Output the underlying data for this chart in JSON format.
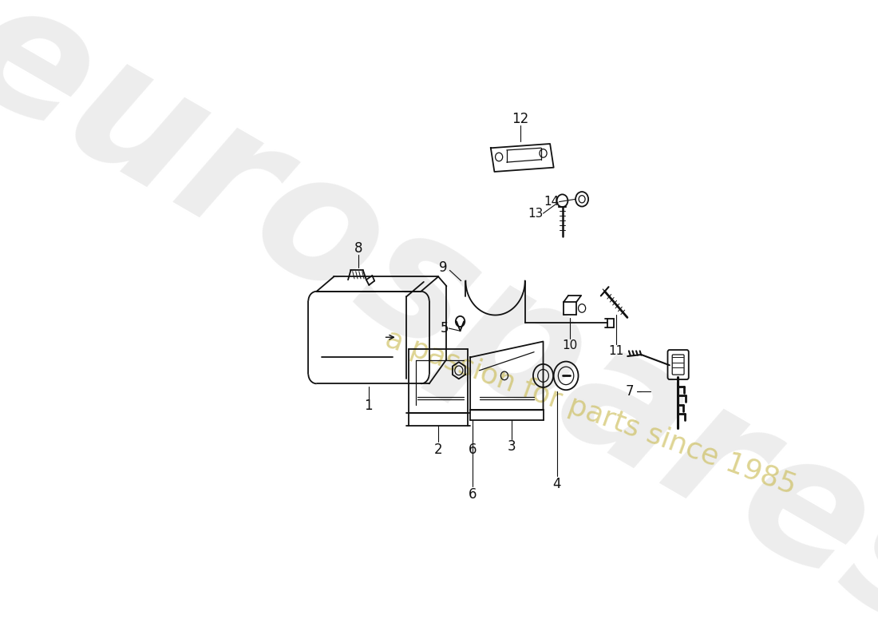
{
  "background_color": "#ffffff",
  "line_color": "#111111",
  "watermark1": "eurospares",
  "watermark2": "a passion for parts since 1985",
  "watermark1_color": "#cccccc",
  "watermark2_color": "#c8b84a"
}
